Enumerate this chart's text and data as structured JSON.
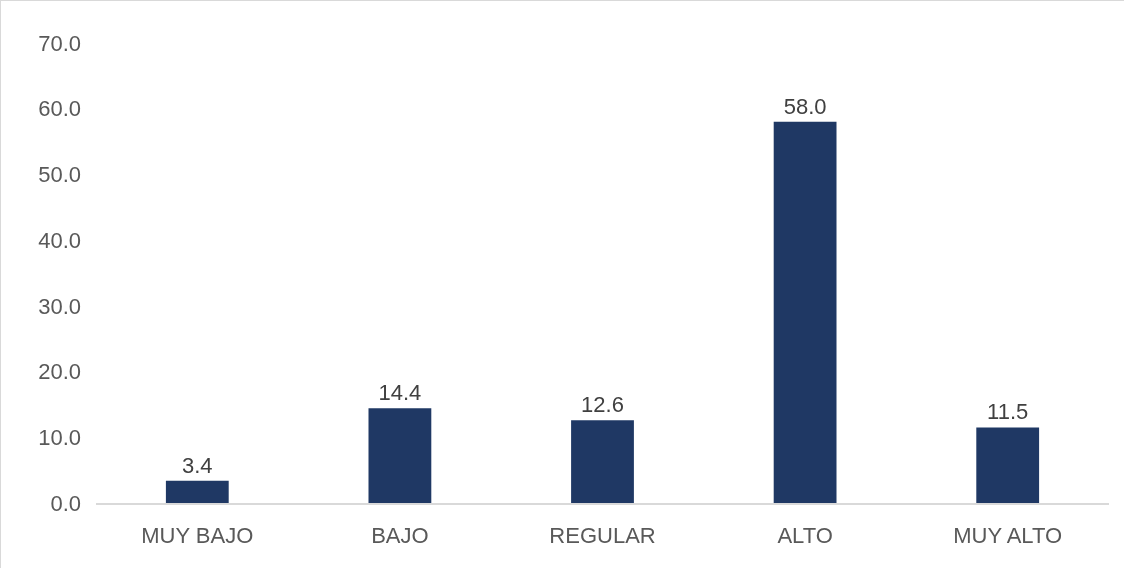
{
  "chart_data": {
    "type": "bar",
    "categories": [
      "MUY BAJO",
      "BAJO",
      "REGULAR",
      "ALTO",
      "MUY ALTO"
    ],
    "values": [
      3.4,
      14.4,
      12.6,
      58.0,
      11.5
    ],
    "value_labels": [
      "3.4",
      "14.4",
      "12.6",
      "58.0",
      "11.5"
    ],
    "color": "#1f3864",
    "ylim": [
      0,
      70
    ],
    "yticks": [
      {
        "value": 0,
        "label": "0.0"
      },
      {
        "value": 10,
        "label": "10.0"
      },
      {
        "value": 20,
        "label": "20.0"
      },
      {
        "value": 30,
        "label": "30.0"
      },
      {
        "value": 40,
        "label": "40.0"
      },
      {
        "value": 50,
        "label": "50.0"
      },
      {
        "value": 60,
        "label": "60.0"
      },
      {
        "value": 70,
        "label": "70.0"
      }
    ],
    "grid": false
  }
}
